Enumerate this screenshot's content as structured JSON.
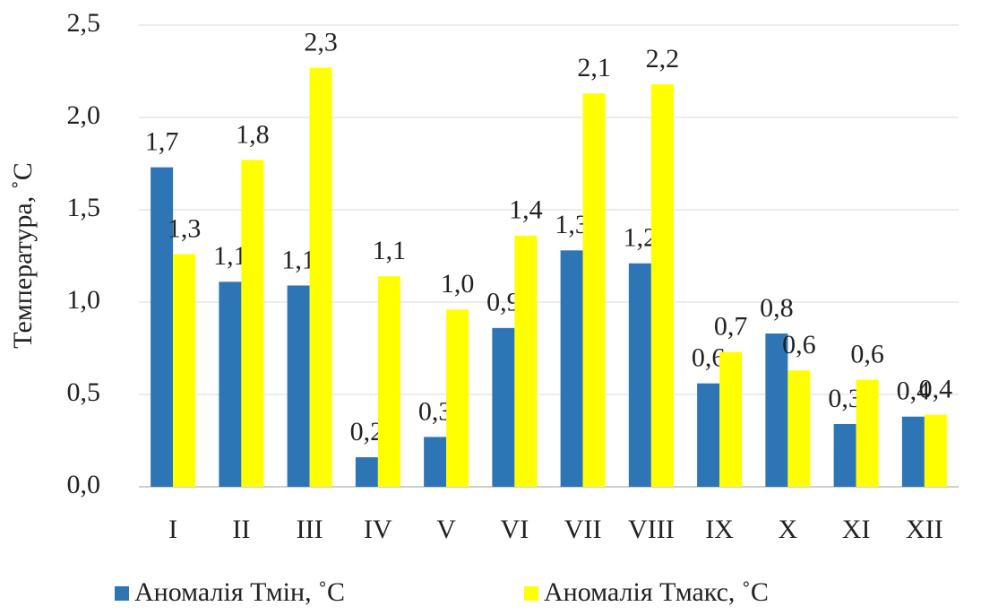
{
  "chart_data": {
    "type": "bar",
    "y_label": "Температура, ˚С",
    "categories": [
      "I",
      "II",
      "III",
      "IV",
      "V",
      "VI",
      "VII",
      "VIII",
      "IX",
      "X",
      "XI",
      "XII"
    ],
    "series": [
      {
        "name": "Аномалія Тмін, ˚С",
        "color": "#2e75b6",
        "values": [
          1.73,
          1.11,
          1.09,
          0.16,
          0.27,
          0.86,
          1.28,
          1.21,
          0.56,
          0.83,
          0.34,
          0.38
        ],
        "value_labels": [
          "1,7",
          "1,1",
          "1,1",
          "0,2",
          "0,3",
          "0,9",
          "1,3",
          "1,2",
          "0,6",
          "0,8",
          "0,3",
          "0,4"
        ]
      },
      {
        "name": "Аномалія Тмакс, ˚С",
        "color": "#ffff00",
        "values": [
          1.26,
          1.77,
          2.27,
          1.14,
          0.96,
          1.36,
          2.13,
          2.18,
          0.73,
          0.63,
          0.58,
          0.39
        ],
        "value_labels": [
          "1,3",
          "1,8",
          "2,3",
          "1,1",
          "1,0",
          "1,4",
          "2,1",
          "2,2",
          "0,7",
          "0,6",
          "0,6",
          "0,4"
        ]
      }
    ],
    "ylim": [
      0,
      2.5
    ],
    "yticks": [
      {
        "value": 0,
        "label": "0,0"
      },
      {
        "value": 0.5,
        "label": "0,5"
      },
      {
        "value": 1,
        "label": "1,0"
      },
      {
        "value": 1.5,
        "label": "1,5"
      },
      {
        "value": 2,
        "label": "2,0"
      },
      {
        "value": 2.5,
        "label": "2,5"
      }
    ],
    "grid": true,
    "legend": "bottom"
  }
}
